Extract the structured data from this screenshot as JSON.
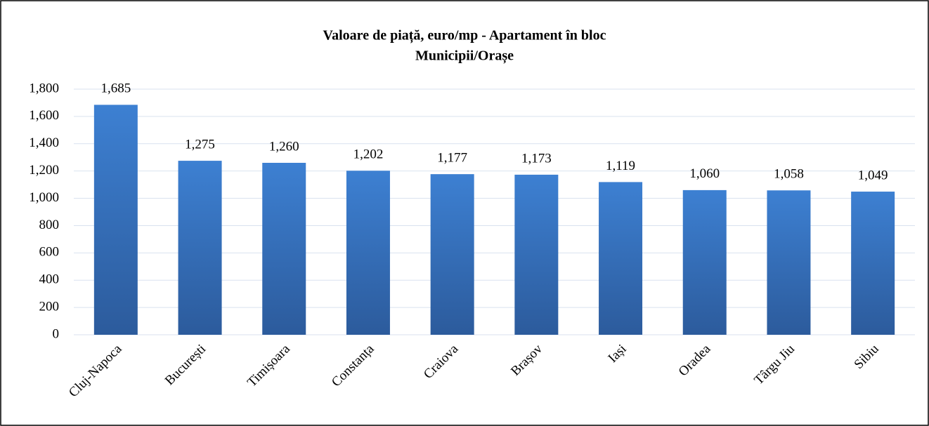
{
  "chart_data": {
    "type": "bar",
    "title": "Valoare de piață, euro/mp - Apartament în bloc",
    "subtitle": "Municipii/Orașe",
    "categories": [
      "Cluj-Napoca",
      "București",
      "Timișoara",
      "Constanța",
      "Craiova",
      "Brașov",
      "Iași",
      "Oradea",
      "Târgu Jiu",
      "Sibiu"
    ],
    "values": [
      1685,
      1275,
      1260,
      1202,
      1177,
      1173,
      1119,
      1060,
      1058,
      1049
    ],
    "value_labels": [
      "1,685",
      "1,275",
      "1,260",
      "1,202",
      "1,177",
      "1,173",
      "1,119",
      "1,060",
      "1,058",
      "1,049"
    ],
    "color": "#3a78c6",
    "ylim": [
      0,
      1800
    ],
    "yticks": [
      0,
      200,
      400,
      600,
      800,
      {
        "value": 1000,
        "label": "1,000"
      },
      {
        "value": 1200,
        "label": "1,200"
      },
      {
        "value": 1400,
        "label": "1,400"
      },
      {
        "value": 1600,
        "label": "1,600"
      },
      {
        "value": 1800,
        "label": "1,800"
      }
    ],
    "grid": true
  }
}
